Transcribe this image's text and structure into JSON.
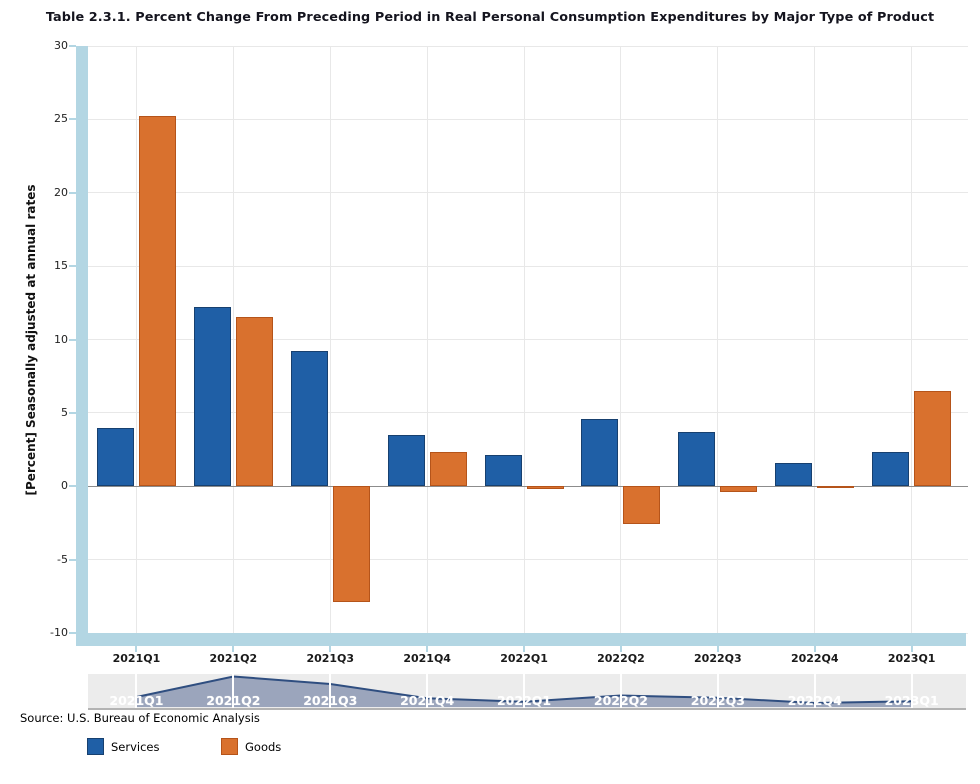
{
  "title": "Table 2.3.1. Percent Change From Preceding Period in Real Personal Consumption Expenditures by Major Type of Product",
  "y_axis_title": "[Percent] Seasonally adjusted at annual rates",
  "source": "Source: U.S. Bureau of Economic Analysis",
  "legend": {
    "items": [
      {
        "label": "Services",
        "color": "#1f5fa6",
        "border": "#17406f"
      },
      {
        "label": "Goods",
        "color": "#d9712e",
        "border": "#b5541a"
      }
    ]
  },
  "chart_data": {
    "type": "bar",
    "categories": [
      "2021Q1",
      "2021Q2",
      "2021Q3",
      "2021Q4",
      "2022Q1",
      "2022Q2",
      "2022Q3",
      "2022Q4",
      "2023Q1"
    ],
    "series": [
      {
        "name": "Services",
        "values": [
          4.0,
          12.2,
          9.2,
          3.5,
          2.1,
          4.6,
          3.7,
          1.6,
          2.3
        ],
        "color": "#1f5fa6",
        "border_color": "#17406f"
      },
      {
        "name": "Goods",
        "values": [
          25.2,
          11.5,
          -7.9,
          2.3,
          -0.2,
          -2.6,
          -0.4,
          -0.1,
          6.5
        ],
        "color": "#d9712e",
        "border_color": "#b5541a"
      }
    ],
    "title": "Table 2.3.1. Percent Change From Preceding Period in Real Personal Consumption Expenditures by Major Type of Product",
    "xlabel": "",
    "ylabel": "[Percent] Seasonally adjusted at annual rates",
    "ylim": [
      -10,
      30
    ],
    "yticks": [
      30,
      25,
      20,
      15,
      10,
      5,
      0,
      -5,
      -10
    ],
    "grid": true,
    "legend_position": "bottom-left",
    "navigator_series": "Services"
  },
  "colors": {
    "axis_band": "#b3d6e3",
    "gridline": "#e8e8e8",
    "zero_line": "#8c8c8c",
    "navigator_bg": "#ececec",
    "navigator_fill": "#97a1b9",
    "navigator_line": "#2f4e80",
    "navigator_label": "#ffffff"
  }
}
